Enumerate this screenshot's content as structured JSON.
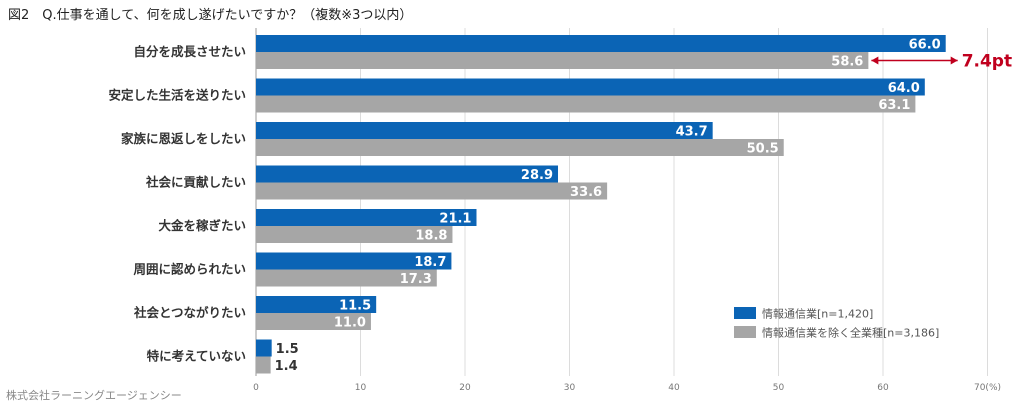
{
  "title": "図2　Q.仕事を通して、何を成し遂げたいですか？（複数※3つ以内）",
  "source": "株式会社ラーニングエージェンシー",
  "colors": {
    "series1": "#0b64b5",
    "series2": "#a6a6a6",
    "annotation": "#c0001e",
    "grid": "#dcdcdc"
  },
  "chart_data": {
    "type": "bar",
    "orientation": "horizontal",
    "categories": [
      "自分を成長させたい",
      "安定した生活を送りたい",
      "家族に恩返しをしたい",
      "社会に貢献したい",
      "大金を稼ぎたい",
      "周囲に認められたい",
      "社会とつながりたい",
      "特に考えていない"
    ],
    "series": [
      {
        "name": "情報通信業[n=1,420]",
        "values": [
          66.0,
          64.0,
          43.7,
          28.9,
          21.1,
          18.7,
          11.5,
          1.5
        ]
      },
      {
        "name": "情報通信業を除く全業種[n=3,186]",
        "values": [
          58.6,
          63.1,
          50.5,
          33.6,
          18.8,
          17.3,
          11.0,
          1.4
        ]
      }
    ],
    "xlim": [
      0,
      70
    ],
    "xticks": [
      0,
      10,
      20,
      30,
      40,
      50,
      60,
      70
    ],
    "xunit": "(%)",
    "grid": true,
    "legend_position": "bottom-right",
    "annotations": [
      {
        "text": "7.4pt",
        "category_index": 0,
        "from": 58.6,
        "to": 66.0
      }
    ]
  }
}
